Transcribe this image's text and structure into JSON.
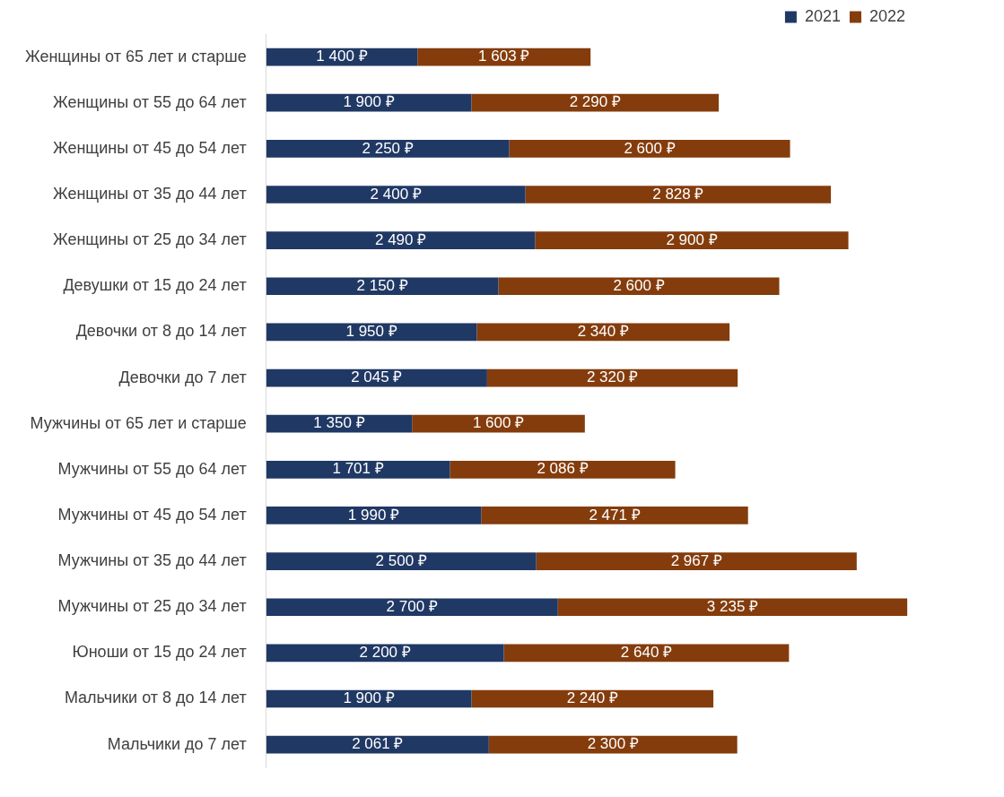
{
  "chart_data": {
    "type": "bar",
    "orientation": "horizontal",
    "stacked": true,
    "legend": "top right",
    "tick_labels": "y",
    "grid": false,
    "categories": [
      "Женщины от 65 лет и старше",
      "Женщины от 55 до 64 лет",
      "Женщины от 45 до 54 лет",
      "Женщины от 35 до 44 лет",
      "Женщины от 25 до 34 лет",
      "Девушки от 15 до 24 лет",
      "Девочки от 8 до 14 лет",
      "Девочки до 7 лет",
      "Мужчины от 65 лет и старше",
      "Мужчины от 55 до 64 лет",
      "Мужчины от 45 до 54 лет",
      "Мужчины от 35 до 44 лет",
      "Мужчины от 25 до 34 лет",
      "Юноши от 15 до 24 лет",
      "Мальчики от 8 до 14 лет",
      "Мальчики до 7 лет"
    ],
    "series": [
      {
        "name": "2021",
        "color": "#203864",
        "values": [
          1400,
          1900,
          2250,
          2400,
          2490,
          2150,
          1950,
          2045,
          1350,
          1701,
          1990,
          2500,
          2700,
          2200,
          1900,
          2061
        ],
        "value_labels": [
          "1 400 ₽",
          "1 900 ₽",
          "2 250 ₽",
          "2 400 ₽",
          "2 490 ₽",
          "2 150 ₽",
          "1 950 ₽",
          "2 045 ₽",
          "1 350 ₽",
          "1 701 ₽",
          "1 990 ₽",
          "2 500 ₽",
          "2 700 ₽",
          "2 200 ₽",
          "1 900 ₽",
          "2 061 ₽"
        ]
      },
      {
        "name": "2022",
        "color": "#843c0c",
        "values": [
          1603,
          2290,
          2600,
          2828,
          2900,
          2600,
          2340,
          2320,
          1600,
          2086,
          2471,
          2967,
          3235,
          2640,
          2240,
          2300
        ],
        "value_labels": [
          "1 603 ₽",
          "2 290 ₽",
          "2 600 ₽",
          "2 828 ₽",
          "2 900 ₽",
          "2 600 ₽",
          "2 340 ₽",
          "2 320 ₽",
          "1 600 ₽",
          "2 086 ₽",
          "2 471 ₽",
          "2 967 ₽",
          "3 235 ₽",
          "2 640 ₽",
          "2 240 ₽",
          "2 300 ₽"
        ]
      }
    ]
  }
}
